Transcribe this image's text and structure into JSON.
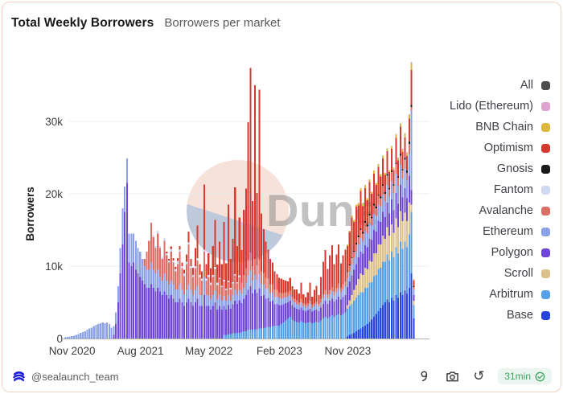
{
  "header": {
    "title": "Total Weekly Borrowers",
    "subtitle": "Borrowers per market"
  },
  "watermark": {
    "text": "Dune"
  },
  "footer": {
    "handle": "@sealaunch_team",
    "badge_text": "31min",
    "icons": [
      "sealaunch-logo-icon",
      "fork-icon",
      "camera-icon",
      "refresh-icon",
      "check-circle-icon"
    ]
  },
  "colors": {
    "card_border": "#f1d3c4",
    "badge_bg": "#e9f5ee",
    "badge_text": "#3fa463",
    "logo_blue": "#1c1ce0",
    "watermark_peach": "#f6e0d6",
    "watermark_slate": "#bcc6da",
    "gridline": "#ececec",
    "axis_line": "#b0b0b0",
    "tick_text": "#3d3d3d"
  },
  "legend": {
    "items": [
      {
        "label": "All",
        "color": "#4d4d4d"
      },
      {
        "label": "Lido (Ethereum)",
        "color": "#dfa3d2"
      },
      {
        "label": "BNB Chain",
        "color": "#ddb83d"
      },
      {
        "label": "Optimism",
        "color": "#d8392e"
      },
      {
        "label": "Gnosis",
        "color": "#1b1b1b"
      },
      {
        "label": "Fantom",
        "color": "#cfd8f3"
      },
      {
        "label": "Avalanche",
        "color": "#dd7066"
      },
      {
        "label": "Ethereum",
        "color": "#8ba1e8"
      },
      {
        "label": "Polygon",
        "color": "#6f46d8"
      },
      {
        "label": "Scroll",
        "color": "#dec08b"
      },
      {
        "label": "Arbitrum",
        "color": "#55a0e8"
      },
      {
        "label": "Base",
        "color": "#2545e0"
      }
    ]
  },
  "chart_data": {
    "type": "bar",
    "stacked": true,
    "title": "Total Weekly Borrowers",
    "subtitle": "Borrowers per market",
    "ylabel": "Borrowers",
    "unit": "thousands of borrowers per week",
    "ylim_k": [
      0,
      40
    ],
    "grid": "horizontal",
    "legend_position": "right",
    "y_ticks": [
      [
        "0",
        0
      ],
      [
        "10k",
        10
      ],
      [
        "20k",
        20
      ],
      [
        "30k",
        30
      ]
    ],
    "x_ticks": [
      {
        "label": "Nov 2020",
        "index": 3
      },
      {
        "label": "Aug 2021",
        "index": 34
      },
      {
        "label": "May 2022",
        "index": 65
      },
      {
        "label": "Feb 2023",
        "index": 97
      },
      {
        "label": "Nov 2023",
        "index": 128
      }
    ],
    "n_bars": 159,
    "x_description": "weekly bars, Nov 2020 through mid 2024",
    "series": [
      {
        "name": "Base",
        "color": "#2545e0",
        "start": 128,
        "values_k": [
          0.3,
          0.5,
          0.6,
          0.8,
          1,
          1.2,
          1.4,
          1.6,
          1.8,
          2,
          2.3,
          2.6,
          3,
          3.4,
          3.8,
          4.2,
          4.6,
          5,
          5.4,
          5,
          5.6,
          5.2,
          6,
          5.6,
          6.4,
          6,
          6.6,
          6.2,
          7,
          9,
          2.8
        ]
      },
      {
        "name": "Arbitrum",
        "color": "#55a0e8",
        "start": 72,
        "values_k": [
          0.5,
          0.5,
          0.6,
          0.6,
          0.7,
          0.7,
          0.8,
          0.8,
          0.9,
          1,
          1,
          1.2,
          1.2,
          1.2,
          1.3,
          1.3,
          1.4,
          1.4,
          1.5,
          1.5,
          1.6,
          1.6,
          1.7,
          1.7,
          1.8,
          1.8,
          2,
          2.2,
          2.5,
          2.8,
          3,
          2.6,
          2.4,
          2.3,
          2.2,
          2.4,
          2.2,
          2.1,
          2.2,
          2.3,
          2.1,
          2.2,
          2.3,
          2.2,
          2.5,
          2.8,
          3,
          2.8,
          3,
          3.2,
          3,
          3.2,
          3.4,
          3.2,
          3.4,
          3.6,
          3.8,
          4,
          4.2,
          4.4,
          4.6,
          4.8,
          5,
          4.8,
          5.2,
          5,
          5.4,
          5.2,
          5.6,
          5.4,
          5.8,
          5.6,
          6,
          5.6,
          6.2,
          5.8,
          6.4,
          6,
          6.6,
          6.2,
          7,
          6.4,
          6.8,
          6.4,
          7.4,
          8.5,
          1.8
        ]
      },
      {
        "name": "Scroll",
        "color": "#dec08b",
        "start": 128,
        "values_k": [
          0.5,
          0.8,
          1.2,
          1.5,
          1.8,
          2.2,
          2.6,
          2.4,
          2.8,
          2.6,
          3,
          2.8,
          3.2,
          3,
          3.4,
          3.2,
          3.6,
          3.2,
          3.8,
          3.4,
          3.8,
          3.4,
          4,
          3.6,
          4.2,
          3.8,
          4,
          3.6,
          4.4,
          1,
          0.6
        ]
      },
      {
        "name": "Polygon",
        "color": "#6f46d8",
        "start": 22,
        "values_k": [
          0.5,
          2,
          5,
          9,
          13,
          17.5,
          21.5,
          10.5,
          10,
          10.5,
          9.5,
          9,
          8.5,
          8,
          7.5,
          7,
          7,
          7.5,
          7,
          6.5,
          7,
          6.5,
          6,
          6.5,
          6,
          5.5,
          6,
          5.5,
          5,
          5,
          5.5,
          5,
          4.5,
          5,
          5.5,
          5,
          4.5,
          5,
          5.5,
          4.5,
          4.5,
          6,
          4.5,
          4.5,
          4,
          4.5,
          5,
          4,
          4.5,
          4,
          4,
          3.5,
          4,
          3.5,
          4,
          4.5,
          4,
          4.5,
          4,
          4.5,
          5,
          5.5,
          6,
          5,
          5.5,
          5,
          5.5,
          4.5,
          4.5,
          4,
          4,
          3.5,
          3.5,
          3,
          3,
          2.8,
          2.6,
          2.5,
          2.4,
          2.2,
          2.2,
          2,
          1.9,
          1.8,
          1.8,
          1.9,
          1.7,
          1.6,
          1.7,
          1.8,
          1.6,
          1.7,
          1.7,
          1.6,
          1.8,
          2,
          2.2,
          2,
          2.2,
          2.3,
          2.1,
          2.2,
          2.4,
          2.2,
          2.3,
          2.4,
          2.5,
          2.6,
          2.7,
          2.8,
          2.9,
          3,
          3,
          2.9,
          3.1,
          3,
          3.1,
          3,
          3.2,
          3,
          3.2,
          3.1,
          3.3,
          3,
          3.4,
          3.1,
          3.4,
          3.1,
          3.5,
          3.2,
          3.6,
          3.3,
          3.4,
          3.2,
          3.7,
          2,
          0.8
        ]
      },
      {
        "name": "Ethereum",
        "color": "#8ba1e8",
        "start": 0,
        "values_k": [
          0.15,
          0.2,
          0.3,
          0.35,
          0.4,
          0.5,
          0.6,
          0.8,
          0.9,
          1,
          1.2,
          1.4,
          1.5,
          1.7,
          1.9,
          2,
          2.1,
          2.2,
          2.1,
          2.2,
          2,
          1.5,
          1.2,
          1.6,
          2.2,
          3.5,
          5,
          3.5,
          3.4,
          4,
          4.5,
          4,
          4,
          3.5,
          3.5,
          3,
          2.5,
          2.5,
          2.5,
          3,
          2.5,
          2.5,
          2.5,
          2,
          2,
          2.5,
          2,
          2,
          2,
          2,
          1.8,
          1.8,
          2,
          1.7,
          1.6,
          1.8,
          2,
          1.7,
          1.5,
          1.7,
          1.8,
          1.5,
          1.5,
          2.5,
          1.5,
          1.5,
          1.4,
          1.5,
          1.6,
          1.4,
          1.5,
          1.3,
          1.4,
          1.2,
          1.4,
          1.2,
          1.3,
          1.5,
          1.3,
          1.4,
          1.3,
          1.5,
          1.7,
          2,
          2.2,
          1.8,
          2,
          1.8,
          2,
          1.6,
          1.5,
          1.4,
          1.3,
          1.2,
          1.2,
          1.1,
          1,
          1,
          0.9,
          0.9,
          0.8,
          0.8,
          0.8,
          0.7,
          0.7,
          0.7,
          0.6,
          0.7,
          0.6,
          0.6,
          0.6,
          0.7,
          0.6,
          0.6,
          0.7,
          0.6,
          0.7,
          0.8,
          0.9,
          0.8,
          0.9,
          1,
          0.9,
          1,
          1.1,
          1,
          1.1,
          1.2,
          1.3,
          1.4,
          1.5,
          1.6,
          1.7,
          1.8,
          1.9,
          1.8,
          2,
          1.9,
          2.1,
          2,
          2.2,
          2.1,
          2.3,
          2.2,
          2.4,
          2.2,
          2.5,
          2.3,
          2.6,
          2.4,
          2.7,
          2.5,
          2.8,
          2.6,
          2.7,
          2.5,
          3,
          11,
          0.8
        ]
      },
      {
        "name": "Avalanche",
        "color": "#dd7066",
        "start": 36,
        "values_k": [
          1,
          2.5,
          4,
          5.5,
          4.5,
          3.5,
          5,
          4,
          3,
          4.5,
          3.5,
          3,
          4,
          3,
          2.5,
          3.5,
          4.5,
          3,
          2.5,
          3.5,
          5.5,
          3,
          2.5,
          3,
          3.5,
          2.5,
          2,
          3.5,
          2,
          2.5,
          2,
          2.5,
          3,
          2,
          2.2,
          1.8,
          2,
          1.5,
          1.8,
          1.5,
          1.6,
          2,
          1.5,
          1.8,
          1.5,
          1.8,
          2,
          2.2,
          2.5,
          2,
          2.2,
          2,
          2,
          1.8,
          1.6,
          1.5,
          1.4,
          1.2,
          1.1,
          1,
          0.9,
          0.8,
          0.8,
          0.7,
          0.7,
          0.6,
          0.6,
          0.5,
          0.5,
          0.5,
          0.4,
          0.5,
          0.4,
          0.4,
          0.4,
          0.4,
          0.4,
          0.4,
          0.4,
          0.4,
          0.5,
          0.5,
          0.6,
          0.5,
          0.6,
          0.6,
          0.5,
          0.6,
          0.7,
          0.6,
          0.7,
          0.7,
          0.8,
          0.8,
          0.9,
          0.9,
          1,
          1,
          1.1,
          1,
          1.1,
          1,
          1.1,
          1,
          1.2,
          1.1,
          1.2,
          1.1,
          1.2,
          1,
          1.2,
          1,
          1.2,
          1,
          1.3,
          1.1,
          1.3,
          1.1,
          1.2,
          1,
          1.4,
          0.5,
          0.3
        ]
      },
      {
        "name": "Fantom",
        "color": "#cfd8f3",
        "start": 40,
        "values_k": [
          0.3,
          0.3,
          0.4,
          0.3,
          0.3,
          0.4,
          0.3,
          0.3,
          0.4,
          0.3,
          0.3,
          0.4,
          0.3,
          0.3,
          0.4,
          0.3,
          0.3,
          0.3,
          0.3,
          0.3,
          0.3,
          0.3,
          0.3,
          0.3,
          0.3,
          0.3,
          0.3,
          0.3,
          0.3,
          0.3,
          0.2,
          0.2,
          0.2,
          0.2,
          0.2,
          0.2,
          0.2,
          0.2,
          0.2,
          0.2
        ]
      },
      {
        "name": "Gnosis",
        "color": "#1b1b1b",
        "start": 128,
        "values_k": [
          0.1,
          0.1,
          0.1,
          0.1,
          0.2,
          0.2,
          0.2,
          0.2,
          0.2,
          0.2,
          0.2,
          0.2,
          0.2,
          0.2,
          0.2,
          0.2,
          0.2,
          0.2,
          0.2,
          0.2,
          0.2,
          0.2,
          0.2,
          0.2,
          0.2,
          0.2,
          0.3,
          0.3,
          0.3,
          0.3,
          0.1
        ]
      },
      {
        "name": "Optimism",
        "color": "#d8392e",
        "start": 46,
        "values_k": [
          0.2,
          0.2,
          0.3,
          0.3,
          0.3,
          0.4,
          0.5,
          0.5,
          0.5,
          1,
          1.5,
          1,
          1,
          2.5,
          4.5,
          1.5,
          1,
          9,
          2,
          3,
          2,
          4,
          6.5,
          2.5,
          5,
          3,
          8,
          3.5,
          10.5,
          4,
          6,
          12,
          5,
          8,
          4.5,
          9,
          11,
          19,
          25.5,
          9,
          24,
          10,
          23.5,
          8,
          6,
          5,
          4,
          3.5,
          3,
          2.5,
          2.2,
          2,
          2,
          1.8,
          1.6,
          1.5,
          1.8,
          1.4,
          1.3,
          1.5,
          1.2,
          2.2,
          1.2,
          1,
          1.5,
          2.5,
          1.1,
          1.8,
          2.2,
          1.2,
          3,
          4.5,
          5.5,
          3.5,
          4.8,
          5.8,
          3.8,
          4.6,
          5.4,
          3.4,
          4,
          4.4,
          3.5,
          4.5,
          5.5,
          4,
          5,
          4.2,
          5.2,
          3.6,
          4.6,
          3.4,
          4.4,
          3.2,
          4.2,
          3,
          3.8,
          2.8,
          3.6,
          2.4,
          3.2,
          2.2,
          3,
          2,
          3.4,
          2.2,
          3.8,
          2.4,
          2.8,
          2,
          3.2,
          4.8,
          0.8
        ]
      },
      {
        "name": "BNB Chain",
        "color": "#ddb83d",
        "start": 128,
        "values_k": [
          0.2,
          0.2,
          0.3,
          0.3,
          0.3,
          0.3,
          0.4,
          0.3,
          0.4,
          0.3,
          0.4,
          0.3,
          0.4,
          0.3,
          0.4,
          0.3,
          0.4,
          0.3,
          0.4,
          0.3,
          0.4,
          0.3,
          0.5,
          0.3,
          0.4,
          0.3,
          0.5,
          0.4,
          0.5,
          0.9,
          0.1
        ]
      },
      {
        "name": "Lido (Ethereum)",
        "color": "#dfa3d2",
        "start": 150,
        "values_k": [
          0.1,
          0.1,
          0.1,
          0.1,
          0.1,
          0.1,
          0.1,
          0.2,
          0.1
        ]
      }
    ]
  }
}
